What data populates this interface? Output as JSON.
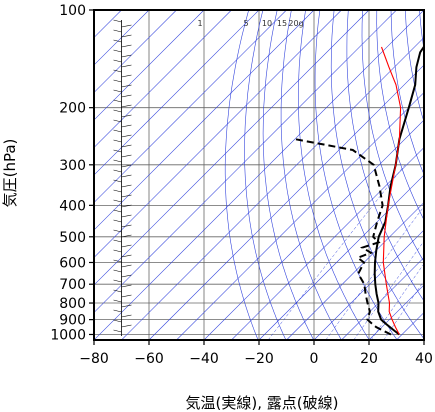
{
  "chart_data": {
    "type": "line",
    "chart_kind": "skew-T sounding",
    "xlabel": "気温(実線), 露点(破線)",
    "ylabel": "気圧(hPa)",
    "xlim": [
      -80,
      40
    ],
    "ylim": [
      1040,
      100
    ],
    "y_scale": "log",
    "x_ticks": [
      "−80",
      "−60",
      "−40",
      "−20",
      "0",
      "20",
      "40"
    ],
    "x_tick_values": [
      -80,
      -60,
      -40,
      -20,
      0,
      20,
      40
    ],
    "y_ticks": [
      "100",
      "200",
      "300",
      "400",
      "500",
      "600",
      "700",
      "800",
      "900",
      "1000"
    ],
    "y_tick_values": [
      100,
      200,
      300,
      400,
      500,
      600,
      700,
      800,
      900,
      1000
    ],
    "mixing_ratio_labels": [
      "1",
      "5",
      "10",
      "15",
      "20g"
    ],
    "mixing_ratio_values": [
      1,
      5,
      10,
      15,
      20
    ],
    "grid": true,
    "colors": {
      "temperature": "#000000",
      "dewpoint": "#000000",
      "parcel": "#ff0000",
      "isopleths": "#3344dd",
      "grid": "#666666"
    },
    "series": [
      {
        "role": "temperature",
        "style": "solid",
        "p": [
          1000,
          975,
          950,
          925,
          900,
          850,
          800,
          750,
          700,
          650,
          600,
          550,
          500,
          450,
          400,
          350,
          300,
          250,
          200,
          170,
          150,
          135,
          120,
          110,
          100
        ],
        "t": [
          29,
          26,
          23,
          20,
          17,
          13,
          10,
          6,
          2,
          -2,
          -6,
          -10,
          -14,
          -17,
          -22,
          -28,
          -34,
          -42,
          -50,
          -56,
          -62,
          -66,
          -68,
          -69,
          -70
        ]
      },
      {
        "role": "dewpoint",
        "style": "dashed",
        "p": [
          1000,
          975,
          950,
          925,
          900,
          850,
          800,
          750,
          700,
          650,
          600,
          580,
          560,
          540,
          520,
          500,
          450,
          400,
          350,
          300,
          270,
          250
        ],
        "t": [
          26,
          22,
          18,
          15,
          12,
          10,
          6,
          2,
          -2,
          -8,
          -10,
          -14,
          -11,
          -16,
          -12,
          -16,
          -20,
          -24,
          -32,
          -42,
          -55,
          -80
        ]
      },
      {
        "role": "parcel",
        "style": "solid",
        "p": [
          1000,
          950,
          900,
          850,
          800,
          700,
          600,
          500,
          400,
          300,
          250,
          200,
          170,
          150,
          130
        ],
        "t": [
          29,
          25,
          21,
          17,
          14,
          6,
          -3,
          -12,
          -22,
          -34,
          -42,
          -53,
          -63,
          -72,
          -82
        ]
      }
    ]
  }
}
